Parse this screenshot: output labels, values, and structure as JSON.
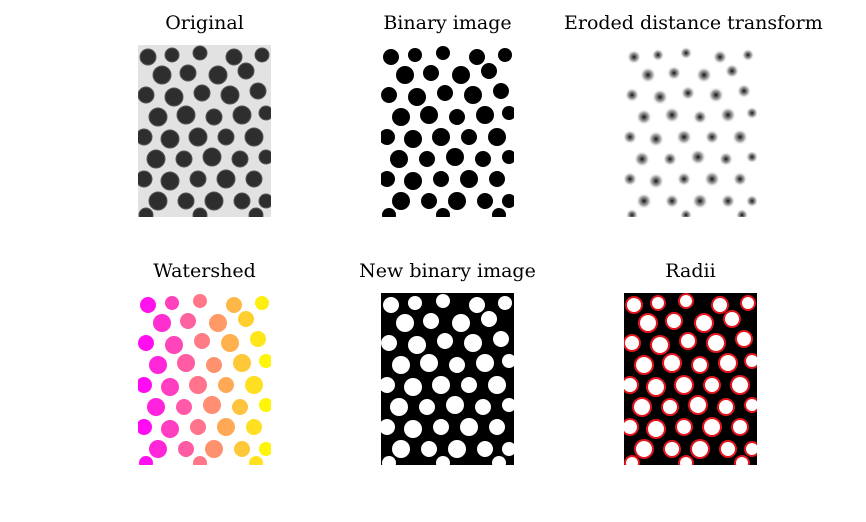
{
  "figure": {
    "panels": [
      {
        "title": "Original"
      },
      {
        "title": "Binary image"
      },
      {
        "title": "Eroded distance transform"
      },
      {
        "title": "Watershed"
      },
      {
        "title": "New binary image"
      },
      {
        "title": "Radii"
      }
    ]
  },
  "colors": {
    "background": "#ffffff",
    "original_background": "#e2e2e2",
    "original_coin": "#2e2e2e",
    "binary_foreground": "#000000",
    "binary_background": "#ffffff",
    "radii_circle": "#e0141c",
    "watershed_gradient": [
      "#ff00ff",
      "#ff8080",
      "#ffff00"
    ]
  }
}
